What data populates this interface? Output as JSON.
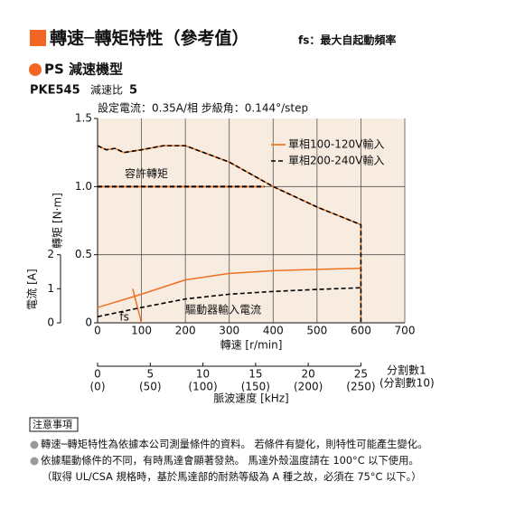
{
  "header": {
    "title": "轉速─轉矩特性（參考值）",
    "note": "fs：最大自起動頻率"
  },
  "section": "PS 減速機型",
  "model": {
    "name": "PKE545",
    "ratio_label": "減速比",
    "ratio": 5
  },
  "chart_data": {
    "type": "line",
    "subtitle": "設定電流：0.35A/相  步級角：0.144°/step",
    "xlabel": "轉速 [r/min]",
    "ylabel": "轉矩 [N·m]",
    "y2label": "電流 [A]",
    "xlim": [
      0,
      700
    ],
    "xticks": [
      0,
      100,
      200,
      300,
      400,
      500,
      600,
      700
    ],
    "ylim": [
      0,
      1.5
    ],
    "yticks": [
      0,
      0.5,
      {
        "value": 1,
        "label": "1.0"
      },
      1.5
    ],
    "y2lim": [
      0,
      6
    ],
    "y2ticks": [
      0,
      1,
      2
    ],
    "grid": true,
    "legend": "upper right",
    "series": [
      {
        "name": "單相100-120V輸入",
        "color": "#f07020",
        "style": "solid",
        "x": [
          0,
          20,
          40,
          60,
          100,
          150,
          200,
          300,
          400,
          500,
          600,
          600
        ],
        "values": [
          1.3,
          1.27,
          1.28,
          1.25,
          1.27,
          1.3,
          1.3,
          1.18,
          1.0,
          0.85,
          0.72,
          0
        ]
      },
      {
        "name": "單相200-240V輸入",
        "color": "#000000",
        "style": "dashed",
        "x": [
          0,
          20,
          40,
          60,
          100,
          150,
          200,
          300,
          400,
          500,
          600,
          600
        ],
        "values": [
          1.3,
          1.27,
          1.28,
          1.25,
          1.27,
          1.3,
          1.3,
          1.18,
          1.0,
          0.85,
          0.72,
          0
        ]
      },
      {
        "color": "#f07020",
        "style": "solid",
        "axis": "y2",
        "x": [
          0,
          100,
          200,
          300,
          400,
          500,
          600
        ],
        "values": [
          0.45,
          0.84,
          1.26,
          1.45,
          1.53,
          1.57,
          1.6
        ]
      },
      {
        "color": "#000000",
        "style": "dashed",
        "axis": "y2",
        "x": [
          0,
          100,
          200,
          300,
          400,
          500,
          600
        ],
        "values": [
          0.18,
          0.45,
          0.7,
          0.84,
          0.92,
          0.98,
          1.03
        ]
      }
    ],
    "allowable_torque": {
      "label": "容許轉矩",
      "color": "#f07020",
      "x": [
        0,
        380
      ],
      "values": [
        1,
        1
      ]
    },
    "fs": {
      "label": "fs",
      "color": "#f07020",
      "x": [
        80,
        100
      ],
      "values": [
        0.25,
        0
      ]
    },
    "current_label": "驅動器輸入電流",
    "pulse_axis": {
      "label": "脈波速度 [kHz]",
      "lim": [
        0,
        29.1667
      ],
      "ticks": [
        0,
        5,
        10,
        15,
        20,
        25
      ],
      "sub_labels": [
        "(0)",
        "(50)",
        "(100)",
        "(150)",
        "(200)",
        "(250)"
      ],
      "division_labels": [
        "分割數1",
        "(分割數10)"
      ]
    }
  },
  "notes": {
    "title": "注意事項",
    "items": [
      "轉速─轉矩特性為依據本公司測量條件的資料。 若條件有變化，則特性可能產生變化。",
      "依據驅動條件的不同，有時馬達會顯著發熱。 馬達外殼溫度請在 100°C 以下使用。"
    ],
    "extra": "（取得 UL/CSA 規格時，基於馬達部的耐熱等級為 A 種之故，必須在 75°C 以下。）"
  }
}
